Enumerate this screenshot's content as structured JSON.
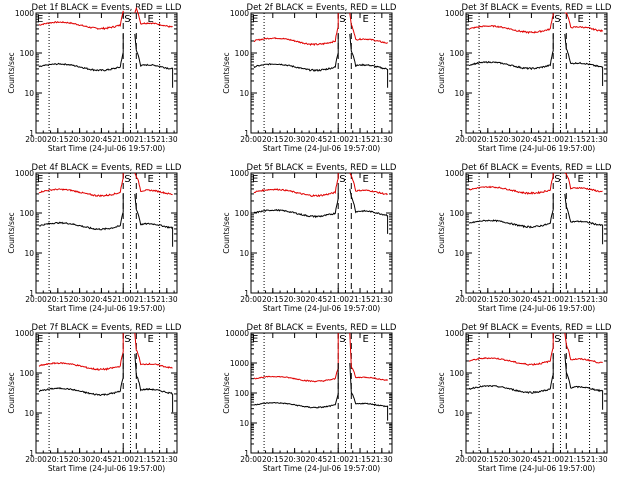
{
  "chart_data": [
    {
      "type": "line",
      "title": "Det 1f BLACK = Events, RED = LLD",
      "xlabel": "Start Time (24-Jul-06 19:57:00)",
      "ylabel": "Counts/sec",
      "yscale": "log",
      "ylim": [
        1,
        1000
      ],
      "xlim": [
        "20:00",
        "21:37"
      ],
      "xticks": [
        "20:00",
        "20:15",
        "20:30",
        "20:45",
        "21:00",
        "21:15",
        "21:30"
      ],
      "yticks": [
        "1",
        "10",
        "100",
        "1000"
      ],
      "markers": [
        {
          "label": "E",
          "x": "20:00"
        },
        {
          "label": "S",
          "x": "21:00"
        },
        {
          "label": "E",
          "x": "21:16"
        }
      ],
      "series": [
        {
          "color": "#e00000",
          "base": 500,
          "in_saa": 1000
        },
        {
          "color": "#000000",
          "base": 45,
          "in_saa": 300
        }
      ]
    },
    {
      "type": "line",
      "title": "Det 2f BLACK = Events, RED = LLD",
      "xlabel": "Start Time (24-Jul-06 19:57:00)",
      "ylabel": "Counts/sec",
      "yscale": "log",
      "ylim": [
        1,
        1000
      ],
      "xlim": [
        "20:00",
        "21:37"
      ],
      "xticks": [
        "20:00",
        "20:15",
        "20:30",
        "20:45",
        "21:00",
        "21:15",
        "21:30"
      ],
      "yticks": [
        "1",
        "10",
        "100",
        "1000"
      ],
      "markers": [
        {
          "label": "E",
          "x": "20:00"
        },
        {
          "label": "S",
          "x": "21:00"
        },
        {
          "label": "E",
          "x": "21:16"
        }
      ],
      "series": [
        {
          "color": "#e00000",
          "base": 200,
          "in_saa": 1000
        },
        {
          "color": "#000000",
          "base": 45,
          "in_saa": 300
        }
      ]
    },
    {
      "type": "line",
      "title": "Det 3f BLACK = Events, RED = LLD",
      "xlabel": "Start Time (24-Jul-06 19:57:00)",
      "ylabel": "Counts/sec",
      "yscale": "log",
      "ylim": [
        1,
        1000
      ],
      "xlim": [
        "20:00",
        "21:37"
      ],
      "xticks": [
        "20:00",
        "20:15",
        "20:30",
        "20:45",
        "21:00",
        "21:15",
        "21:30"
      ],
      "yticks": [
        "1",
        "10",
        "100",
        "1000"
      ],
      "markers": [
        {
          "label": "E",
          "x": "20:00"
        },
        {
          "label": "S",
          "x": "21:00"
        },
        {
          "label": "E",
          "x": "21:16"
        }
      ],
      "series": [
        {
          "color": "#e00000",
          "base": 400,
          "in_saa": 1000
        },
        {
          "color": "#000000",
          "base": 50,
          "in_saa": 300
        }
      ]
    },
    {
      "type": "line",
      "title": "Det 4f BLACK = Events, RED = LLD",
      "xlabel": "Start Time (24-Jul-06 19:57:00)",
      "ylabel": "Counts/sec",
      "yscale": "log",
      "ylim": [
        1,
        1000
      ],
      "xlim": [
        "20:00",
        "21:37"
      ],
      "xticks": [
        "20:00",
        "20:15",
        "20:30",
        "20:45",
        "21:00",
        "21:15",
        "21:30"
      ],
      "yticks": [
        "1",
        "10",
        "100",
        "1000"
      ],
      "markers": [
        {
          "label": "E",
          "x": "20:00"
        },
        {
          "label": "S",
          "x": "21:00"
        },
        {
          "label": "E",
          "x": "21:16"
        }
      ],
      "series": [
        {
          "color": "#e00000",
          "base": 330,
          "in_saa": 1000
        },
        {
          "color": "#000000",
          "base": 48,
          "in_saa": 300
        }
      ]
    },
    {
      "type": "line",
      "title": "Det 5f BLACK = Events, RED = LLD",
      "xlabel": "Start Time (24-Jul-06 19:57:00)",
      "ylabel": "Counts/sec",
      "yscale": "log",
      "ylim": [
        1,
        1000
      ],
      "xlim": [
        "20:00",
        "21:37"
      ],
      "xticks": [
        "20:00",
        "20:15",
        "20:30",
        "20:45",
        "21:00",
        "21:15",
        "21:30"
      ],
      "yticks": [
        "1",
        "10",
        "100",
        "1000"
      ],
      "markers": [
        {
          "label": "E",
          "x": "20:00"
        },
        {
          "label": "S",
          "x": "21:00"
        },
        {
          "label": "E",
          "x": "21:16"
        }
      ],
      "series": [
        {
          "color": "#e00000",
          "base": 330,
          "in_saa": 1000
        },
        {
          "color": "#000000",
          "base": 100,
          "in_saa": 400
        }
      ]
    },
    {
      "type": "line",
      "title": "Det 6f BLACK = Events, RED = LLD",
      "xlabel": "Start Time (24-Jul-06 19:57:00)",
      "ylabel": "Counts/sec",
      "yscale": "log",
      "ylim": [
        1,
        1000
      ],
      "xlim": [
        "20:00",
        "21:37"
      ],
      "xticks": [
        "20:00",
        "20:15",
        "20:30",
        "20:45",
        "21:00",
        "21:15",
        "21:30"
      ],
      "yticks": [
        "1",
        "10",
        "100",
        "1000"
      ],
      "markers": [
        {
          "label": "E",
          "x": "20:00"
        },
        {
          "label": "S",
          "x": "21:00"
        },
        {
          "label": "E",
          "x": "21:16"
        }
      ],
      "series": [
        {
          "color": "#e00000",
          "base": 380,
          "in_saa": 1000
        },
        {
          "color": "#000000",
          "base": 55,
          "in_saa": 300
        }
      ]
    },
    {
      "type": "line",
      "title": "Det 7f BLACK = Events, RED = LLD",
      "xlabel": "Start Time (24-Jul-06 19:57:00)",
      "ylabel": "Counts/sec",
      "yscale": "log",
      "ylim": [
        1,
        1000
      ],
      "xlim": [
        "20:00",
        "21:37"
      ],
      "xticks": [
        "20:00",
        "20:15",
        "20:30",
        "20:45",
        "21:00",
        "21:15",
        "21:30"
      ],
      "yticks": [
        "1",
        "10",
        "100",
        "1000"
      ],
      "markers": [
        {
          "label": "E",
          "x": "20:00"
        },
        {
          "label": "S",
          "x": "21:00"
        },
        {
          "label": "E",
          "x": "21:16"
        }
      ],
      "series": [
        {
          "color": "#e00000",
          "base": 150,
          "in_saa": 1000
        },
        {
          "color": "#000000",
          "base": 35,
          "in_saa": 300
        }
      ]
    },
    {
      "type": "line",
      "title": "Det 8f BLACK = Events, RED = LLD",
      "xlabel": "Start Time (24-Jul-06 19:57:00)",
      "ylabel": "Counts/sec",
      "yscale": "log",
      "ylim": [
        1,
        10000
      ],
      "xlim": [
        "20:00",
        "21:37"
      ],
      "xticks": [
        "20:00",
        "20:15",
        "20:30",
        "20:45",
        "21:00",
        "21:15",
        "21:30"
      ],
      "yticks": [
        "1",
        "10",
        "100",
        "1000",
        "10000"
      ],
      "markers": [
        {
          "label": "E",
          "x": "20:00"
        },
        {
          "label": "S",
          "x": "21:00"
        },
        {
          "label": "E",
          "x": "21:16"
        }
      ],
      "series": [
        {
          "color": "#e00000",
          "base": 300,
          "in_saa": 10000
        },
        {
          "color": "#000000",
          "base": 40,
          "in_saa": 1000
        }
      ]
    },
    {
      "type": "line",
      "title": "Det 9f BLACK = Events, RED = LLD",
      "xlabel": "Start Time (24-Jul-06 19:57:00)",
      "ylabel": "Counts/sec",
      "yscale": "log",
      "ylim": [
        1,
        1000
      ],
      "xlim": [
        "20:00",
        "21:37"
      ],
      "xticks": [
        "20:00",
        "20:15",
        "20:30",
        "20:45",
        "21:00",
        "21:15",
        "21:30"
      ],
      "yticks": [
        "1",
        "10",
        "100",
        "1000"
      ],
      "markers": [
        {
          "label": "E",
          "x": "20:00"
        },
        {
          "label": "S",
          "x": "21:00"
        },
        {
          "label": "E",
          "x": "21:16"
        }
      ],
      "series": [
        {
          "color": "#e00000",
          "base": 200,
          "in_saa": 1000
        },
        {
          "color": "#000000",
          "base": 40,
          "in_saa": 300
        }
      ]
    }
  ],
  "grid": false,
  "dotted_guides": [
    "20:09",
    "21:05",
    "21:25"
  ],
  "dashed_guides": [
    "21:00",
    "21:09"
  ]
}
